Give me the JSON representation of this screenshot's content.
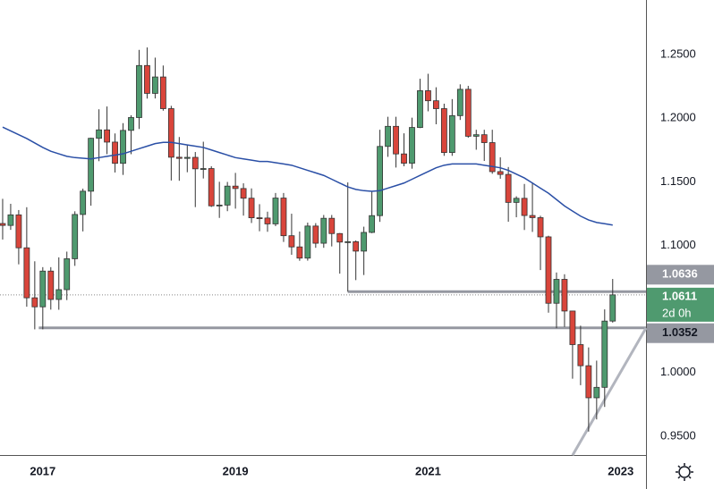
{
  "chart_data": {
    "type": "candlestick",
    "x": [
      0,
      1,
      2,
      3,
      4,
      5,
      6,
      7,
      8,
      9,
      10,
      11,
      12,
      13,
      14,
      15,
      16,
      17,
      18,
      19,
      20,
      21,
      22,
      23,
      24,
      25,
      26,
      27,
      28,
      29,
      30,
      31,
      32,
      33,
      34,
      35,
      36,
      37,
      38,
      39,
      40,
      41,
      42,
      43,
      44,
      45,
      46,
      47,
      48,
      49,
      50,
      51,
      52,
      53,
      54,
      55,
      56,
      57,
      58,
      59,
      60,
      61,
      62,
      63,
      64,
      65,
      66,
      67,
      68,
      69,
      70,
      71,
      72,
      73,
      74,
      75,
      76
    ],
    "open": [
      1.1172,
      1.1157,
      1.124,
      1.0981,
      1.0588,
      1.0517,
      1.0798,
      1.0575,
      1.0652,
      1.0895,
      1.1243,
      1.1426,
      1.1842,
      1.1908,
      1.1812,
      1.1645,
      1.1904,
      1.2005,
      1.2414,
      1.2195,
      1.2324,
      1.2075,
      1.1693,
      1.1684,
      1.1692,
      1.1602,
      1.1604,
      1.1311,
      1.1317,
      1.1466,
      1.1447,
      1.1371,
      1.1217,
      1.1215,
      1.1169,
      1.1372,
      1.1076,
      1.0988,
      1.09,
      1.1152,
      1.1017,
      1.1213,
      1.1093,
      1.1026,
      1.1029,
      1.0955,
      1.1102,
      1.1234,
      1.1778,
      1.1936,
      1.1719,
      1.1646,
      1.1927,
      1.2216,
      1.2137,
      1.2075,
      1.173,
      1.202,
      1.2227,
      1.1858,
      1.187,
      1.1808,
      1.158,
      1.1558,
      1.1338,
      1.137,
      1.1235,
      1.1218,
      1.1067,
      1.0545,
      1.0733,
      1.0484,
      1.022,
      1.0054,
      0.9802,
      0.9884,
      1.0405
    ],
    "high": [
      1.1366,
      1.1327,
      1.1278,
      1.13,
      1.0875,
      1.0829,
      1.0829,
      1.0906,
      1.0951,
      1.1268,
      1.1446,
      1.1846,
      1.207,
      1.2092,
      1.188,
      1.1961,
      1.2023,
      1.2537,
      1.2556,
      1.2476,
      1.2414,
      1.2097,
      1.1852,
      1.1791,
      1.1734,
      1.1815,
      1.1622,
      1.15,
      1.1499,
      1.157,
      1.1488,
      1.1448,
      1.1324,
      1.1265,
      1.1412,
      1.1412,
      1.1249,
      1.1109,
      1.1179,
      1.1175,
      1.1239,
      1.1239,
      1.1097,
      1.1495,
      1.1039,
      1.1147,
      1.1422,
      1.1909,
      1.2011,
      1.2011,
      1.1881,
      1.2004,
      1.231,
      1.2349,
      1.2243,
      1.2114,
      1.215,
      1.2266,
      1.2254,
      1.1909,
      1.1909,
      1.1909,
      1.1692,
      1.1616,
      1.1386,
      1.1483,
      1.1495,
      1.1233,
      1.1076,
      1.0787,
      1.0773,
      1.0486,
      1.0369,
      1.0198,
      1.0094,
      1.0497,
      1.0736
    ],
    "low": [
      1.1046,
      1.1122,
      1.0851,
      1.0518,
      1.034,
      1.034,
      1.0495,
      1.0494,
      1.057,
      1.0839,
      1.111,
      1.1312,
      1.1662,
      1.1717,
      1.1573,
      1.1554,
      1.1717,
      1.1915,
      1.2154,
      1.2155,
      1.2059,
      1.151,
      1.1508,
      1.1575,
      1.1301,
      1.1526,
      1.1302,
      1.1216,
      1.1269,
      1.1289,
      1.1234,
      1.1176,
      1.1111,
      1.1107,
      1.1151,
      1.1027,
      1.0926,
      1.0879,
      1.088,
      1.0981,
      1.0981,
      1.0992,
      1.0778,
      1.0636,
      1.0727,
      1.0767,
      1.1096,
      1.1185,
      1.1696,
      1.1612,
      1.1622,
      1.1603,
      1.1922,
      1.2054,
      1.1952,
      1.1704,
      1.1704,
      1.1986,
      1.1846,
      1.1752,
      1.1664,
      1.1563,
      1.1524,
      1.1186,
      1.1221,
      1.1121,
      1.1106,
      1.0806,
      1.0471,
      1.0349,
      1.0359,
      0.9952,
      0.9901,
      0.9536,
      0.9632,
      0.973,
      1.0393
    ],
    "close": [
      1.1157,
      1.124,
      1.0981,
      1.0588,
      1.0517,
      1.0798,
      1.0575,
      1.0652,
      1.0895,
      1.1243,
      1.1426,
      1.1842,
      1.1908,
      1.1812,
      1.1645,
      1.1904,
      1.2005,
      1.2414,
      1.2195,
      1.2324,
      1.2075,
      1.1693,
      1.1684,
      1.1692,
      1.1602,
      1.1604,
      1.1311,
      1.1317,
      1.1466,
      1.1447,
      1.1371,
      1.1217,
      1.1215,
      1.1169,
      1.1372,
      1.1076,
      1.0988,
      1.09,
      1.1152,
      1.1017,
      1.1213,
      1.1093,
      1.1026,
      1.1029,
      1.0955,
      1.1102,
      1.1234,
      1.1778,
      1.1936,
      1.1719,
      1.1646,
      1.1927,
      1.2216,
      1.2137,
      1.2075,
      1.173,
      1.202,
      1.2227,
      1.1858,
      1.187,
      1.1808,
      1.158,
      1.1558,
      1.1338,
      1.137,
      1.1235,
      1.1218,
      1.1067,
      1.0545,
      1.0733,
      1.0484,
      1.022,
      1.0054,
      0.9802,
      0.9884,
      1.0405,
      1.0611
    ],
    "up_color": "#4f9a6f",
    "down_color": "#d9453b",
    "moving_average": {
      "color": "#2a4fa6",
      "values": [
        1.193,
        1.19,
        1.187,
        1.184,
        1.1805,
        1.177,
        1.174,
        1.172,
        1.17,
        1.169,
        1.1685,
        1.168,
        1.169,
        1.17,
        1.171,
        1.172,
        1.174,
        1.176,
        1.178,
        1.18,
        1.181,
        1.181,
        1.18,
        1.179,
        1.178,
        1.177,
        1.175,
        1.173,
        1.171,
        1.169,
        1.168,
        1.167,
        1.166,
        1.166,
        1.165,
        1.164,
        1.163,
        1.161,
        1.159,
        1.157,
        1.155,
        1.152,
        1.149,
        1.146,
        1.144,
        1.143,
        1.1425,
        1.143,
        1.145,
        1.147,
        1.149,
        1.152,
        1.155,
        1.158,
        1.161,
        1.163,
        1.164,
        1.164,
        1.164,
        1.164,
        1.163,
        1.162,
        1.161,
        1.159,
        1.156,
        1.153,
        1.149,
        1.145,
        1.141,
        1.136,
        1.131,
        1.127,
        1.123,
        1.12,
        1.118,
        1.117,
        1.116
      ]
    },
    "levels": [
      {
        "value": 1.0636,
        "from": 43
      },
      {
        "value": 1.0352,
        "from": 4.5
      }
    ],
    "trendline": {
      "x": [
        71,
        80.15
      ],
      "y": [
        0.935,
        1.035
      ]
    },
    "current_price": 1.0611,
    "countdown": "2d 0h",
    "xlim": [
      -0.33,
      80.15
    ],
    "xticks": [
      {
        "value": 5,
        "label": "2017"
      },
      {
        "value": 29,
        "label": "2019"
      },
      {
        "value": 53,
        "label": "2021"
      },
      {
        "value": 77,
        "label": "2023"
      }
    ],
    "ylim": [
      0.9352,
      1.2929
    ],
    "yticks": [
      {
        "value": 0.95,
        "label": "0.9500"
      },
      {
        "value": 1.0,
        "label": "1.0000"
      },
      {
        "value": 1.05,
        "label": "1.0500"
      },
      {
        "value": 1.1,
        "label": "1.1000"
      },
      {
        "value": 1.15,
        "label": "1.1500"
      },
      {
        "value": 1.2,
        "label": "1.2000"
      },
      {
        "value": 1.25,
        "label": "1.2500"
      }
    ]
  }
}
